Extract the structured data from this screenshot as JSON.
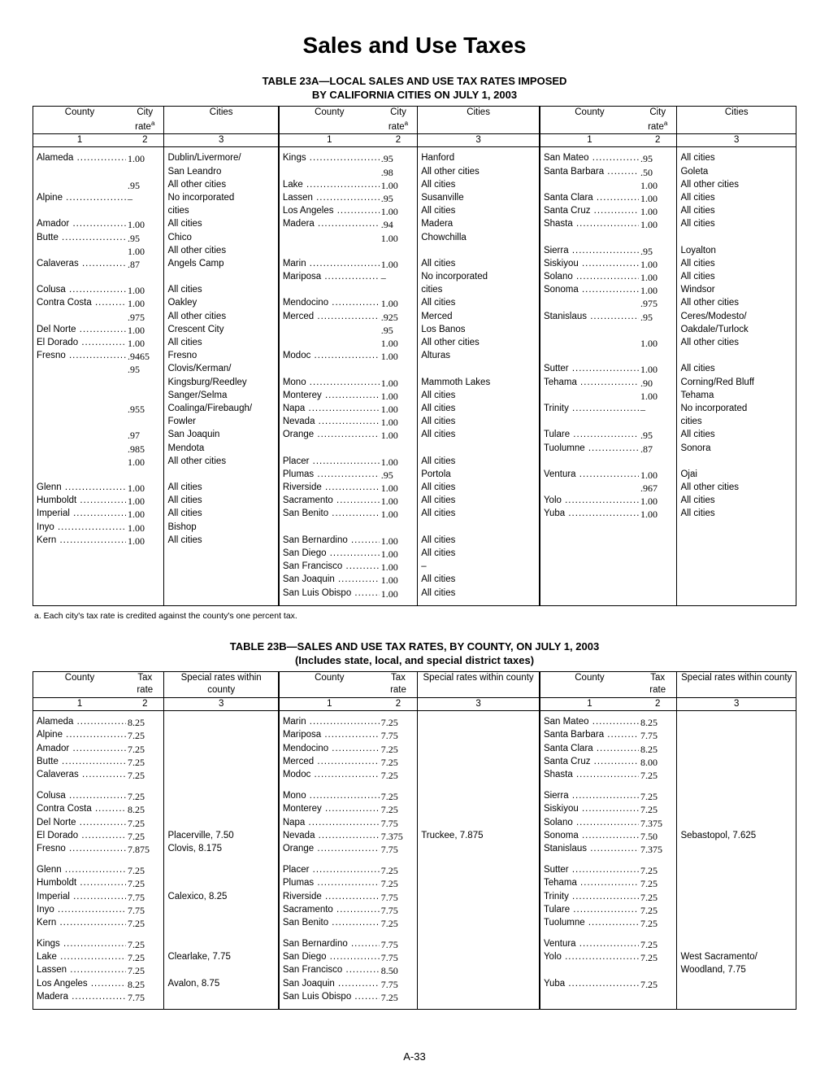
{
  "page_title": "Sales and Use Taxes",
  "page_number": "A-33",
  "table_a": {
    "heading1": "TABLE 23A—LOCAL SALES AND USE TAX RATES IMPOSED",
    "heading2": "BY CALIFORNIA CITIES ON JULY 1, 2003",
    "col_labels": {
      "county": "County",
      "rate": "City rate",
      "rate_sup": "a",
      "cities": "Cities"
    },
    "col_nums": [
      "1",
      "2",
      "3"
    ],
    "columns": [
      [
        {
          "c": "Alameda",
          "r": "1.00",
          "t": "Dublin/Livermore/"
        },
        {
          "c": "",
          "r": "",
          "t": "San Leandro"
        },
        {
          "c": "",
          "r": ".95",
          "t": "All other cities"
        },
        {
          "c": "Alpine",
          "r": "–",
          "t": "No incorporated"
        },
        {
          "c": "",
          "r": "",
          "t": "cities"
        },
        {
          "c": "Amador",
          "r": "1.00",
          "t": "All cities"
        },
        {
          "c": "Butte",
          "r": ".95",
          "t": "Chico"
        },
        {
          "c": "",
          "r": "1.00",
          "t": "All other cities"
        },
        {
          "c": "Calaveras",
          "r": ".87",
          "t": "Angels Camp"
        },
        {
          "c": "",
          "r": "",
          "t": ""
        },
        {
          "c": "Colusa",
          "r": "1.00",
          "t": "All cities"
        },
        {
          "c": "Contra Costa",
          "r": "1.00",
          "t": "Oakley"
        },
        {
          "c": "",
          "r": ".975",
          "t": "All other cities"
        },
        {
          "c": "Del Norte",
          "r": "1.00",
          "t": "Crescent City"
        },
        {
          "c": "El Dorado",
          "r": "1.00",
          "t": "All cities"
        },
        {
          "c": "Fresno",
          "r": ".9465",
          "t": "Fresno"
        },
        {
          "c": "",
          "r": ".95",
          "t": "Clovis/Kerman/"
        },
        {
          "c": "",
          "r": "",
          "t": "Kingsburg/Reedley"
        },
        {
          "c": "",
          "r": "",
          "t": "Sanger/Selma"
        },
        {
          "c": "",
          "r": ".955",
          "t": "Coalinga/Firebaugh/"
        },
        {
          "c": "",
          "r": "",
          "t": "Fowler"
        },
        {
          "c": "",
          "r": ".97",
          "t": "San Joaquin"
        },
        {
          "c": "",
          "r": ".985",
          "t": "Mendota"
        },
        {
          "c": "",
          "r": "1.00",
          "t": "All other cities"
        },
        {
          "c": "",
          "r": "",
          "t": ""
        },
        {
          "c": "Glenn",
          "r": "1.00",
          "t": "All cities"
        },
        {
          "c": "Humboldt",
          "r": "1.00",
          "t": "All cities"
        },
        {
          "c": "Imperial",
          "r": "1.00",
          "t": "All cities"
        },
        {
          "c": "Inyo",
          "r": "1.00",
          "t": "Bishop"
        },
        {
          "c": "Kern",
          "r": "1.00",
          "t": "All cities"
        }
      ],
      [
        {
          "c": "Kings",
          "r": ".95",
          "t": "Hanford"
        },
        {
          "c": "",
          "r": ".98",
          "t": "All other cities"
        },
        {
          "c": "Lake",
          "r": "1.00",
          "t": "All cities"
        },
        {
          "c": "Lassen",
          "r": ".95",
          "t": "Susanville"
        },
        {
          "c": "Los Angeles",
          "r": "1.00",
          "t": "All cities"
        },
        {
          "c": "Madera",
          "r": ".94",
          "t": "Madera"
        },
        {
          "c": "",
          "r": "1.00",
          "t": "Chowchilla"
        },
        {
          "c": "",
          "r": "",
          "t": ""
        },
        {
          "c": "Marin",
          "r": "1.00",
          "t": "All cities"
        },
        {
          "c": "Mariposa",
          "r": "–",
          "t": "No incorporated"
        },
        {
          "c": "",
          "r": "",
          "t": "cities"
        },
        {
          "c": "Mendocino",
          "r": "1.00",
          "t": "All cities"
        },
        {
          "c": "Merced",
          "r": ".925",
          "t": "Merced"
        },
        {
          "c": "",
          "r": ".95",
          "t": "Los Banos"
        },
        {
          "c": "",
          "r": "1.00",
          "t": "All other cities"
        },
        {
          "c": "Modoc",
          "r": "1.00",
          "t": "Alturas"
        },
        {
          "c": "",
          "r": "",
          "t": ""
        },
        {
          "c": "Mono",
          "r": "1.00",
          "t": "Mammoth Lakes"
        },
        {
          "c": "Monterey",
          "r": "1.00",
          "t": "All cities"
        },
        {
          "c": "Napa",
          "r": "1.00",
          "t": "All cities"
        },
        {
          "c": "Nevada",
          "r": "1.00",
          "t": "All cities"
        },
        {
          "c": "Orange",
          "r": "1.00",
          "t": "All cities"
        },
        {
          "c": "",
          "r": "",
          "t": ""
        },
        {
          "c": "Placer",
          "r": "1.00",
          "t": "All cities"
        },
        {
          "c": "Plumas",
          "r": ".95",
          "t": "Portola"
        },
        {
          "c": "Riverside",
          "r": "1.00",
          "t": "All cities"
        },
        {
          "c": "Sacramento",
          "r": "1.00",
          "t": "All cities"
        },
        {
          "c": "San Benito",
          "r": "1.00",
          "t": "All cities"
        },
        {
          "c": "",
          "r": "",
          "t": ""
        },
        {
          "c": "San Bernardino",
          "r": "1.00",
          "t": "All cities"
        },
        {
          "c": "San Diego",
          "r": "1.00",
          "t": "All cities"
        },
        {
          "c": "San Francisco",
          "r": "1.00",
          "t": "–"
        },
        {
          "c": "San Joaquin",
          "r": "1.00",
          "t": "All cities"
        },
        {
          "c": "San Luis Obispo",
          "r": "1.00",
          "t": "All cities"
        }
      ],
      [
        {
          "c": "San Mateo",
          "r": ".95",
          "t": "All cities"
        },
        {
          "c": "Santa Barbara",
          "r": ".50",
          "t": "Goleta"
        },
        {
          "c": "",
          "r": "1.00",
          "t": "All other cities"
        },
        {
          "c": "Santa Clara",
          "r": "1.00",
          "t": "All cities"
        },
        {
          "c": "Santa Cruz",
          "r": "1.00",
          "t": "All cities"
        },
        {
          "c": "Shasta",
          "r": "1.00",
          "t": "All cities"
        },
        {
          "c": "",
          "r": "",
          "t": ""
        },
        {
          "c": "Sierra",
          "r": ".95",
          "t": "Loyalton"
        },
        {
          "c": "Siskiyou",
          "r": "1.00",
          "t": "All cities"
        },
        {
          "c": "Solano",
          "r": "1.00",
          "t": "All cities"
        },
        {
          "c": "Sonoma",
          "r": "1.00",
          "t": "Windsor"
        },
        {
          "c": "",
          "r": ".975",
          "t": "All other cities"
        },
        {
          "c": "Stanislaus",
          "r": ".95",
          "t": "Ceres/Modesto/"
        },
        {
          "c": "",
          "r": "",
          "t": "Oakdale/Turlock"
        },
        {
          "c": "",
          "r": "1.00",
          "t": "All other cities"
        },
        {
          "c": "",
          "r": "",
          "t": ""
        },
        {
          "c": "Sutter",
          "r": "1.00",
          "t": "All cities"
        },
        {
          "c": "Tehama",
          "r": ".90",
          "t": "Corning/Red Bluff"
        },
        {
          "c": "",
          "r": "1.00",
          "t": "Tehama"
        },
        {
          "c": "Trinity",
          "r": "–",
          "t": "No incorporated"
        },
        {
          "c": "",
          "r": "",
          "t": "cities"
        },
        {
          "c": "Tulare",
          "r": ".95",
          "t": "All cities"
        },
        {
          "c": "Tuolumne",
          "r": ".87",
          "t": "Sonora"
        },
        {
          "c": "",
          "r": "",
          "t": ""
        },
        {
          "c": "Ventura",
          "r": "1.00",
          "t": "Ojai"
        },
        {
          "c": "",
          "r": ".967",
          "t": "All other cities"
        },
        {
          "c": "Yolo",
          "r": "1.00",
          "t": "All cities"
        },
        {
          "c": "Yuba",
          "r": "1.00",
          "t": "All cities"
        }
      ]
    ],
    "footnote": "a.  Each city's tax rate is credited against the county's one percent tax."
  },
  "table_b": {
    "heading1": "TABLE 23B—SALES AND USE TAX RATES, BY COUNTY, ON JULY 1, 2003",
    "heading2": "(Includes state, local, and special district taxes)",
    "col_labels": {
      "county": "County",
      "rate": "Tax rate",
      "special": "Special rates within county"
    },
    "col_nums": [
      "1",
      "2",
      "3"
    ],
    "columns": [
      [
        {
          "c": "Alameda",
          "r": "8.25",
          "s": ""
        },
        {
          "c": "Alpine",
          "r": "7.25",
          "s": ""
        },
        {
          "c": "Amador",
          "r": "7.25",
          "s": ""
        },
        {
          "c": "Butte",
          "r": "7.25",
          "s": ""
        },
        {
          "c": "Calaveras",
          "r": "7.25",
          "s": ""
        },
        {
          "gap": true
        },
        {
          "c": "Colusa",
          "r": "7.25",
          "s": ""
        },
        {
          "c": "Contra Costa",
          "r": "8.25",
          "s": ""
        },
        {
          "c": "Del Norte",
          "r": "7.25",
          "s": ""
        },
        {
          "c": "El Dorado",
          "r": "7.25",
          "s": "Placerville, 7.50"
        },
        {
          "c": "Fresno",
          "r": "7.875",
          "s": "Clovis, 8.175"
        },
        {
          "gap": true
        },
        {
          "c": "Glenn",
          "r": "7.25",
          "s": ""
        },
        {
          "c": "Humboldt",
          "r": "7.25",
          "s": ""
        },
        {
          "c": "Imperial",
          "r": "7.75",
          "s": "Calexico, 8.25"
        },
        {
          "c": "Inyo",
          "r": "7.75",
          "s": ""
        },
        {
          "c": "Kern",
          "r": "7.25",
          "s": ""
        },
        {
          "gap": true
        },
        {
          "c": "Kings",
          "r": "7.25",
          "s": ""
        },
        {
          "c": "Lake",
          "r": "7.25",
          "s": "Clearlake, 7.75"
        },
        {
          "c": "Lassen",
          "r": "7.25",
          "s": ""
        },
        {
          "c": "Los Angeles",
          "r": "8.25",
          "s": "Avalon, 8.75"
        },
        {
          "c": "Madera",
          "r": "7.75",
          "s": ""
        }
      ],
      [
        {
          "c": "Marin",
          "r": "7.25",
          "s": ""
        },
        {
          "c": "Mariposa",
          "r": "7.75",
          "s": ""
        },
        {
          "c": "Mendocino",
          "r": "7.25",
          "s": ""
        },
        {
          "c": "Merced",
          "r": "7.25",
          "s": ""
        },
        {
          "c": "Modoc",
          "r": "7.25",
          "s": ""
        },
        {
          "gap": true
        },
        {
          "c": "Mono",
          "r": "7.25",
          "s": ""
        },
        {
          "c": "Monterey",
          "r": "7.25",
          "s": ""
        },
        {
          "c": "Napa",
          "r": "7.75",
          "s": ""
        },
        {
          "c": "Nevada",
          "r": "7.375",
          "s": "Truckee, 7.875"
        },
        {
          "c": "Orange",
          "r": "7.75",
          "s": ""
        },
        {
          "gap": true
        },
        {
          "c": "Placer",
          "r": "7.25",
          "s": ""
        },
        {
          "c": "Plumas",
          "r": "7.25",
          "s": ""
        },
        {
          "c": "Riverside",
          "r": "7.75",
          "s": ""
        },
        {
          "c": "Sacramento",
          "r": "7.75",
          "s": ""
        },
        {
          "c": "San Benito",
          "r": "7.25",
          "s": ""
        },
        {
          "gap": true
        },
        {
          "c": "San Bernardino",
          "r": "7.75",
          "s": ""
        },
        {
          "c": "San Diego",
          "r": "7.75",
          "s": ""
        },
        {
          "c": "San Francisco",
          "r": "8.50",
          "s": ""
        },
        {
          "c": "San Joaquin",
          "r": "7.75",
          "s": ""
        },
        {
          "c": "San Luis Obispo",
          "r": "7.25",
          "s": ""
        }
      ],
      [
        {
          "c": "San Mateo",
          "r": "8.25",
          "s": ""
        },
        {
          "c": "Santa Barbara",
          "r": "7.75",
          "s": ""
        },
        {
          "c": "Santa Clara",
          "r": "8.25",
          "s": ""
        },
        {
          "c": "Santa Cruz",
          "r": "8.00",
          "s": ""
        },
        {
          "c": "Shasta",
          "r": "7.25",
          "s": ""
        },
        {
          "gap": true
        },
        {
          "c": "Sierra",
          "r": "7.25",
          "s": ""
        },
        {
          "c": "Siskiyou",
          "r": "7.25",
          "s": ""
        },
        {
          "c": "Solano",
          "r": "7.375",
          "s": ""
        },
        {
          "c": "Sonoma",
          "r": "7.50",
          "s": "Sebastopol, 7.625"
        },
        {
          "c": "Stanislaus",
          "r": "7.375",
          "s": ""
        },
        {
          "gap": true
        },
        {
          "c": "Sutter",
          "r": "7.25",
          "s": ""
        },
        {
          "c": "Tehama",
          "r": "7.25",
          "s": ""
        },
        {
          "c": "Trinity",
          "r": "7.25",
          "s": ""
        },
        {
          "c": "Tulare",
          "r": "7.25",
          "s": ""
        },
        {
          "c": "Tuolumne",
          "r": "7.25",
          "s": ""
        },
        {
          "gap": true
        },
        {
          "c": "Ventura",
          "r": "7.25",
          "s": ""
        },
        {
          "c": "Yolo",
          "r": "7.25",
          "s": "West Sacramento/"
        },
        {
          "c": "",
          "r": "",
          "s": "Woodland, 7.75"
        },
        {
          "c": "Yuba",
          "r": "7.25",
          "s": ""
        }
      ]
    ]
  }
}
